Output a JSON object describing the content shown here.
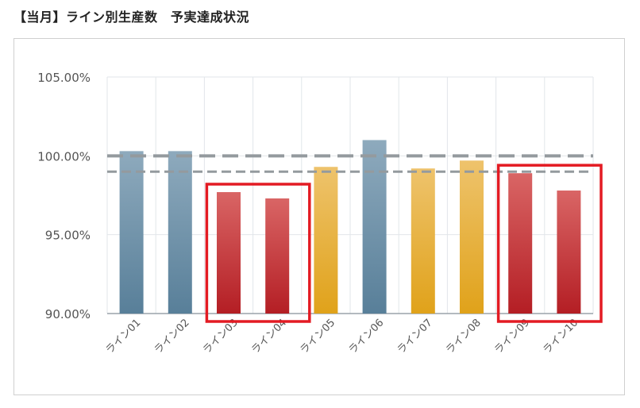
{
  "title": "【当月】ライン別生産数　予実達成状況",
  "colors": {
    "blue_top": "#8eaabd",
    "blue_bottom": "#587f99",
    "red_top": "#d96565",
    "red_bottom": "#b41e24",
    "yellow_top": "#eec36c",
    "yellow_bottom": "#e0a21a",
    "highlight": "#e31b23",
    "target_line": "#949a9e",
    "grid": "#e2e6ea"
  },
  "chart_data": {
    "type": "bar",
    "title": "【当月】ライン別生産数　予実達成状況",
    "xlabel": "",
    "ylabel": "",
    "categories": [
      "ライン01",
      "ライン02",
      "ライン03",
      "ライン04",
      "ライン05",
      "ライン06",
      "ライン07",
      "ライン08",
      "ライン09",
      "ライン10"
    ],
    "values": [
      100.3,
      100.3,
      97.7,
      97.3,
      99.3,
      101.0,
      99.2,
      99.7,
      98.9,
      97.8
    ],
    "bar_color_group": [
      "blue",
      "blue",
      "red",
      "red",
      "yellow",
      "blue",
      "yellow",
      "yellow",
      "red",
      "red"
    ],
    "ylim": [
      90,
      105
    ],
    "yticks": [
      "90.00%",
      "95.00%",
      "100.00%",
      "105.00%"
    ],
    "ytick_values": [
      90,
      95,
      100,
      105
    ],
    "reference_lines": [
      {
        "value": 100.0,
        "style": "dashed-thick"
      },
      {
        "value": 99.0,
        "style": "dashed-thin"
      }
    ],
    "highlight_groups": [
      [
        2,
        3
      ],
      [
        8,
        9
      ]
    ],
    "grid": true
  }
}
